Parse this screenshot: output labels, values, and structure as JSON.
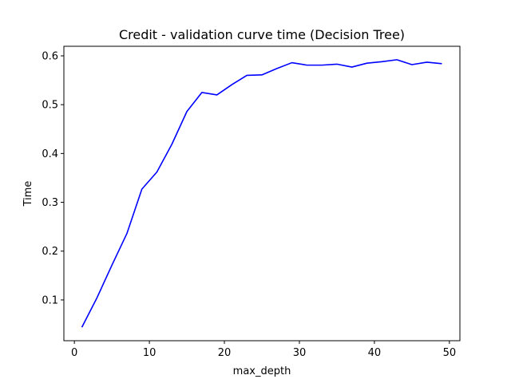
{
  "chart_data": {
    "type": "line",
    "title": "Credit - validation curve time (Decision Tree)",
    "xlabel": "max_depth",
    "ylabel": "Time",
    "xlim": [
      -1.4,
      51.4
    ],
    "ylim": [
      0.0165,
      0.6196
    ],
    "xticks": [
      0,
      10,
      20,
      30,
      40,
      50
    ],
    "yticks": [
      0.1,
      0.2,
      0.3,
      0.4,
      0.5,
      0.6
    ],
    "xtick_labels": [
      "0",
      "10",
      "20",
      "30",
      "40",
      "50"
    ],
    "ytick_labels": [
      "0.1",
      "0.2",
      "0.3",
      "0.4",
      "0.5",
      "0.6"
    ],
    "grid": false,
    "legend": "none",
    "series": [
      {
        "color": "#0000ff",
        "x": [
          1,
          3,
          5,
          7,
          9,
          11,
          13,
          15,
          17,
          19,
          21,
          23,
          25,
          27,
          29,
          31,
          33,
          35,
          37,
          39,
          41,
          43,
          45,
          47,
          49
        ],
        "y": [
          0.044,
          0.104,
          0.171,
          0.236,
          0.327,
          0.362,
          0.419,
          0.486,
          0.525,
          0.52,
          0.541,
          0.56,
          0.561,
          0.574,
          0.586,
          0.581,
          0.581,
          0.583,
          0.577,
          0.585,
          0.588,
          0.592,
          0.582,
          0.587,
          0.584
        ]
      }
    ]
  }
}
